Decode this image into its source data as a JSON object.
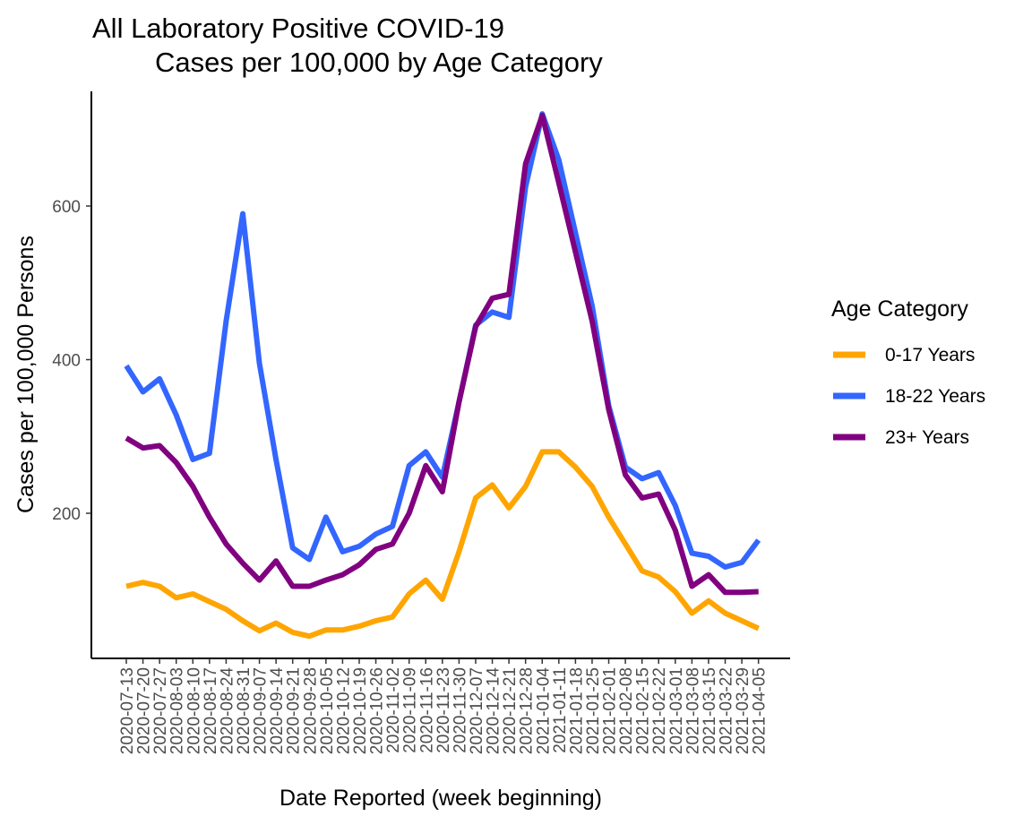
{
  "chart_data": {
    "type": "line",
    "title_line1": "All Laboratory Positive COVID-19",
    "title_line2": "Cases per 100,000 by Age Category",
    "xlabel": "Date Reported (week beginning)",
    "ylabel": "Cases per 100,000 Persons",
    "ylim": [
      10,
      740
    ],
    "yticks": [
      200,
      400,
      600
    ],
    "grid": false,
    "legend_title": "Age Category",
    "legend_position": "right",
    "x": [
      "2020-07-13",
      "2020-07-20",
      "2020-07-27",
      "2020-08-03",
      "2020-08-10",
      "2020-08-17",
      "2020-08-24",
      "2020-08-31",
      "2020-09-07",
      "2020-09-14",
      "2020-09-21",
      "2020-09-28",
      "2020-10-05",
      "2020-10-12",
      "2020-10-19",
      "2020-10-26",
      "2020-11-02",
      "2020-11-09",
      "2020-11-16",
      "2020-11-23",
      "2020-11-30",
      "2020-12-07",
      "2020-12-14",
      "2020-12-21",
      "2020-12-28",
      "2021-01-04",
      "2021-01-11",
      "2021-01-18",
      "2021-01-25",
      "2021-02-01",
      "2021-02-08",
      "2021-02-15",
      "2021-02-22",
      "2021-03-01",
      "2021-03-08",
      "2021-03-15",
      "2021-03-22",
      "2021-03-29",
      "2021-04-05"
    ],
    "series": [
      {
        "name": "0-17 Years",
        "color": "#FFA500",
        "values": [
          105,
          110,
          105,
          90,
          95,
          85,
          75,
          60,
          47,
          57,
          45,
          40,
          48,
          48,
          53,
          60,
          65,
          95,
          113,
          88,
          150,
          220,
          237,
          207,
          235,
          280,
          280,
          260,
          235,
          195,
          160,
          125,
          117,
          98,
          70,
          86,
          70,
          60,
          50
        ]
      },
      {
        "name": "18-22 Years",
        "color": "#3366FF",
        "values": [
          392,
          358,
          375,
          328,
          270,
          278,
          450,
          590,
          395,
          270,
          155,
          140,
          195,
          150,
          157,
          173,
          183,
          262,
          280,
          247,
          345,
          445,
          462,
          455,
          625,
          720,
          660,
          565,
          470,
          340,
          260,
          245,
          253,
          210,
          148,
          144,
          130,
          136,
          165
        ]
      },
      {
        "name": "23+ Years",
        "color": "#800080",
        "values": [
          298,
          285,
          288,
          266,
          235,
          195,
          160,
          135,
          113,
          138,
          105,
          105,
          113,
          120,
          133,
          153,
          160,
          200,
          262,
          228,
          345,
          443,
          480,
          485,
          655,
          718,
          630,
          540,
          450,
          335,
          250,
          220,
          225,
          178,
          105,
          120,
          97,
          97,
          98
        ]
      }
    ]
  }
}
